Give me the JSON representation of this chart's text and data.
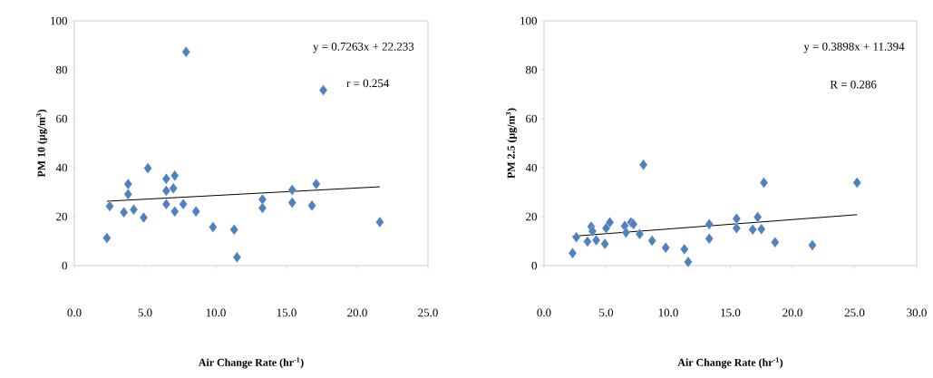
{
  "chart_data": [
    {
      "type": "scatter",
      "xlabel": "Air Change Rate (hr$^{-1}$)",
      "ylabel": "PM 10  (μg/m$^{3}$)",
      "xlim": [
        0,
        25
      ],
      "ylim": [
        0,
        100
      ],
      "xticks": [
        {
          "value": 0,
          "label": "0.0"
        },
        {
          "value": 5,
          "label": "5.0"
        },
        {
          "value": 10,
          "label": "10.0"
        },
        {
          "value": 15,
          "label": "15.0"
        },
        {
          "value": 20,
          "label": "20.0"
        },
        {
          "value": 25,
          "label": "25.0"
        }
      ],
      "yticks": [
        0,
        20,
        40,
        60,
        80,
        100
      ],
      "grid": false,
      "annotations": [
        "y = 0.7263x + 22.233",
        "r = 0.254"
      ],
      "series": [
        {
          "type": "scatter",
          "marker": "diamond",
          "color": "#4f81bd",
          "x": [
            2.3,
            2.5,
            3.5,
            3.8,
            3.8,
            4.2,
            4.9,
            5.2,
            6.5,
            6.5,
            6.5,
            7.0,
            7.1,
            7.1,
            7.7,
            7.9,
            8.6,
            9.8,
            11.3,
            11.5,
            13.3,
            13.3,
            15.4,
            15.4,
            16.8,
            17.1,
            17.6,
            21.6
          ],
          "values": [
            11.3,
            24.3,
            21.8,
            33.3,
            29.2,
            22.9,
            19.6,
            39.8,
            35.5,
            30.6,
            25.1,
            31.6,
            36.8,
            22.1,
            25.1,
            87.3,
            22.1,
            15.7,
            14.7,
            3.4,
            27.0,
            23.5,
            30.9,
            25.7,
            24.5,
            33.3,
            71.7,
            17.8
          ]
        },
        {
          "type": "line",
          "marker": "none",
          "color": "#000000",
          "x": [
            2.3,
            21.6
          ],
          "values": [
            26.3,
            32.2
          ]
        }
      ]
    },
    {
      "type": "scatter",
      "xlabel": "Air Change Rate (hr$^{-1}$)",
      "ylabel": "PM 2.5 (μg/m$^{3}$)",
      "xlim": [
        0,
        30
      ],
      "ylim": [
        0,
        100
      ],
      "xticks": [
        {
          "value": 0,
          "label": "0.0"
        },
        {
          "value": 5,
          "label": "5.0"
        },
        {
          "value": 10,
          "label": "10.0"
        },
        {
          "value": 15,
          "label": "15.0"
        },
        {
          "value": 20,
          "label": "20.0"
        },
        {
          "value": 25,
          "label": "25.0"
        },
        {
          "value": 30,
          "label": "30.0"
        }
      ],
      "yticks": [
        0,
        20,
        40,
        60,
        80,
        100
      ],
      "grid": false,
      "annotations": [
        "y = 0.3898x + 11.394",
        "R = 0.286"
      ],
      "series": [
        {
          "type": "scatter",
          "marker": "diamond",
          "color": "#4f81bd",
          "x": [
            2.3,
            2.6,
            3.5,
            3.8,
            3.9,
            4.2,
            4.9,
            5.0,
            5.3,
            6.5,
            6.6,
            7.0,
            7.2,
            7.7,
            8.0,
            8.7,
            9.8,
            11.3,
            11.6,
            13.3,
            13.3,
            15.5,
            15.5,
            16.8,
            17.2,
            17.5,
            17.7,
            18.6,
            21.6,
            25.2
          ],
          "values": [
            5.1,
            11.6,
            9.8,
            15.9,
            14.1,
            10.4,
            8.9,
            15.3,
            17.7,
            16.2,
            13.5,
            17.7,
            16.9,
            12.9,
            41.2,
            10.2,
            7.3,
            6.7,
            1.5,
            16.9,
            11.0,
            19.2,
            15.3,
            14.7,
            19.8,
            14.9,
            33.9,
            9.5,
            8.3,
            33.9
          ]
        },
        {
          "type": "line",
          "marker": "none",
          "color": "#000000",
          "x": [
            2.3,
            25.2
          ],
          "values": [
            12.0,
            20.8
          ]
        }
      ]
    }
  ]
}
